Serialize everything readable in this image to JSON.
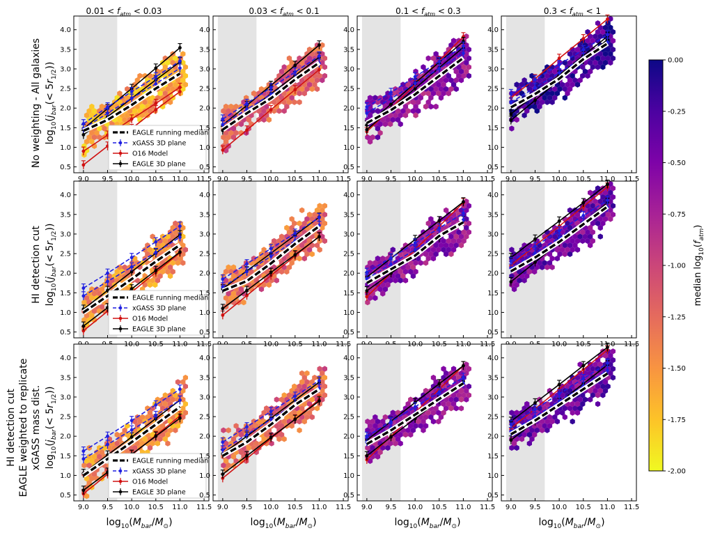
{
  "figure": {
    "columns": [
      {
        "pre": "0.01 < ",
        "var": "f",
        "sub": "atm",
        "post": " < 0.03"
      },
      {
        "pre": "0.03 < ",
        "var": "f",
        "sub": "atm",
        "post": " < 0.1"
      },
      {
        "pre": "0.1 < ",
        "var": "f",
        "sub": "atm",
        "post": " < 0.3"
      },
      {
        "pre": "0.3 < ",
        "var": "f",
        "sub": "atm",
        "post": " < 1"
      }
    ],
    "rows": [
      {
        "lines": [
          "No weighting - All galaxies"
        ],
        "ylabel": "log10(jbar(< 5r1/2))"
      },
      {
        "lines": [
          "HI detection cut"
        ],
        "ylabel": "log10(jbar(< 5r1/2))"
      },
      {
        "lines": [
          "HI detection cut",
          "EAGLE weighted to replicate",
          "xGASS mass dist."
        ],
        "ylabel": "log10(jbar(< 5r1/2))"
      }
    ],
    "xlabel": "log10(Mbar/M⊙)",
    "colorbar": {
      "label": "median log10(fatm)",
      "range": [
        -2.0,
        0.0
      ],
      "ticks": [
        "0.00",
        "-0.25",
        "-0.50",
        "-0.75",
        "-1.00",
        "-1.25",
        "-1.50",
        "-1.75",
        "-2.00"
      ],
      "colormap": "plasma_r"
    },
    "legend_entries": [
      "EAGLE running median",
      "xGASS 3D plane",
      "O16 Model",
      "EAGLE 3D plane"
    ],
    "shaded_region": [
      8.9,
      9.7
    ],
    "colors": {
      "eagle_median": "#000000",
      "xgass": "#1f1fe0",
      "o16": "#d01010",
      "eagle_plane": "#000000",
      "shade": "#e4e4e4"
    }
  },
  "chart_data": {
    "type": "scatter",
    "title": "",
    "xlabel": "log10(Mbar/M⊙)",
    "ylabel": "log10(jbar(< 5r1/2))",
    "xlim": [
      8.8,
      11.6
    ],
    "ylim": [
      0.35,
      4.35
    ],
    "xticks": [
      9.0,
      9.5,
      10.0,
      10.5,
      11.0,
      11.5
    ],
    "yticks": [
      0.5,
      1.0,
      1.5,
      2.0,
      2.5,
      3.0,
      3.5,
      4.0
    ],
    "x_points": [
      9.0,
      9.5,
      10.0,
      10.5,
      11.0
    ],
    "panels": [
      [
        {
          "color_center": -1.6,
          "median": [
            1.42,
            1.7,
            2.08,
            2.5,
            2.88
          ],
          "xgass": [
            [
              1.6,
              2.03,
              2.42,
              2.8,
              3.2
            ],
            [
              1.48,
              1.87,
              2.25,
              2.62,
              3.02
            ]
          ],
          "o16": [
            [
              0.9,
              1.31,
              1.72,
              2.12,
              2.53
            ],
            [
              0.55,
              1.03,
              1.48,
              1.96,
              2.42
            ]
          ],
          "eagle_plane": [
            [
              1.47,
              1.99,
              2.5,
              3.02,
              3.54
            ],
            [
              1.32,
              1.78,
              2.25,
              2.72,
              3.18
            ]
          ]
        },
        {
          "color_center": -1.15,
          "median": [
            1.45,
            1.87,
            2.25,
            2.73,
            3.16
          ],
          "xgass": [
            [
              1.72,
              2.12,
              2.52,
              2.92,
              3.33
            ],
            [
              1.58,
              1.97,
              2.35,
              2.75,
              3.14
            ]
          ],
          "o16": [
            [
              0.93,
              1.44,
              1.96,
              2.47,
              2.98
            ]
          ],
          "eagle_plane": [
            [
              1.57,
              2.07,
              2.58,
              3.09,
              3.61
            ],
            [
              1.43,
              1.9,
              2.37,
              2.83,
              3.3
            ]
          ]
        },
        {
          "color_center": -0.6,
          "median": [
            1.62,
            1.95,
            2.35,
            2.82,
            3.28
          ],
          "xgass": [
            [
              2.03,
              2.4,
              2.8,
              3.19,
              3.58
            ],
            [
              1.87,
              2.24,
              2.63,
              3.01,
              3.4
            ]
          ],
          "o16": [
            [
              1.4,
              1.99,
              2.6,
              3.21,
              3.82
            ]
          ],
          "eagle_plane": [
            [
              1.57,
              2.1,
              2.64,
              3.17,
              3.7
            ],
            [
              1.45,
              1.98,
              2.5,
              3.03,
              3.55
            ]
          ]
        },
        {
          "color_center": -0.25,
          "median": [
            2.02,
            2.36,
            2.75,
            3.25,
            3.65
          ],
          "xgass": [
            [
              2.37,
              2.73,
              3.11,
              3.49,
              3.87
            ],
            [
              2.15,
              2.52,
              2.9,
              3.29,
              3.68
            ]
          ],
          "o16": [
            [
              2.26,
              2.75,
              3.27,
              3.77,
              4.27
            ]
          ],
          "eagle_plane": [
            [
              1.69,
              2.2,
              2.72,
              3.23,
              3.75
            ],
            [
              1.85,
              2.35,
              2.84,
              3.34,
              3.83
            ]
          ]
        }
      ],
      [
        {
          "color_center": -1.45,
          "median": [
            1.0,
            1.42,
            1.85,
            2.3,
            2.72
          ],
          "xgass": [
            [
              1.62,
              2.0,
              2.4,
              2.8,
              3.2
            ],
            [
              1.42,
              1.79,
              2.16,
              2.53,
              2.92
            ]
          ],
          "o16": [
            [
              0.53,
              1.03,
              1.52,
              2.02,
              2.52
            ]
          ],
          "eagle_plane": [
            [
              1.08,
              1.56,
              2.04,
              2.51,
              2.98
            ],
            [
              0.65,
              1.12,
              1.6,
              2.07,
              2.54
            ]
          ]
        },
        {
          "color_center": -1.25,
          "median": [
            1.55,
            1.8,
            2.25,
            2.75,
            3.2
          ],
          "xgass": [
            [
              1.85,
              2.24,
              2.63,
              3.02,
              3.42
            ],
            [
              1.65,
              2.04,
              2.43,
              2.83,
              3.22
            ]
          ],
          "o16": [
            [
              0.93,
              1.43,
              1.94,
              2.44,
              2.94
            ]
          ],
          "eagle_plane": [
            [
              1.6,
              2.06,
              2.51,
              2.97,
              3.43
            ],
            [
              1.1,
              1.56,
              2.02,
              2.47,
              2.93
            ]
          ]
        },
        {
          "color_center": -0.6,
          "median": [
            1.75,
            2.1,
            2.45,
            2.95,
            3.3
          ],
          "xgass": [
            [
              2.02,
              2.39,
              2.77,
              3.15,
              3.53
            ],
            [
              1.86,
              2.23,
              2.6,
              2.98,
              3.36
            ]
          ],
          "o16": [
            [
              1.4,
              2.0,
              2.6,
              3.2,
              3.8
            ]
          ],
          "eagle_plane": [
            [
              1.9,
              2.38,
              2.86,
              3.34,
              3.82
            ],
            [
              1.55,
              2.0,
              2.45,
              2.9,
              3.35
            ]
          ]
        },
        {
          "color_center": -0.45,
          "median": [
            2.05,
            2.4,
            2.8,
            3.25,
            3.7
          ],
          "xgass": [
            [
              2.3,
              2.69,
              3.08,
              3.47,
              3.86
            ],
            [
              2.13,
              2.51,
              2.9,
              3.29,
              3.68
            ]
          ],
          "o16": [
            [
              2.2,
              2.7,
              3.2,
              3.7,
              4.2
            ]
          ],
          "eagle_plane": [
            [
              2.4,
              2.87,
              3.33,
              3.8,
              4.27
            ],
            [
              1.78,
              2.28,
              2.79,
              3.29,
              3.8
            ]
          ]
        }
      ],
      [
        {
          "color_center": -1.45,
          "median": [
            1.0,
            1.42,
            1.85,
            2.3,
            2.75
          ],
          "xgass": [
            [
              1.62,
              2.0,
              2.4,
              2.8,
              3.2
            ],
            [
              1.42,
              1.79,
              2.16,
              2.53,
              2.92
            ]
          ],
          "o16": [
            [
              0.53,
              1.03,
              1.52,
              2.02,
              2.52
            ]
          ],
          "eagle_plane": [
            [
              1.05,
              1.52,
              1.98,
              2.45,
              2.92
            ],
            [
              0.62,
              1.08,
              1.54,
              2.0,
              2.46
            ]
          ]
        },
        {
          "color_center": -1.25,
          "median": [
            1.5,
            1.85,
            2.3,
            2.8,
            3.2
          ],
          "xgass": [
            [
              1.85,
              2.24,
              2.63,
              3.02,
              3.42
            ],
            [
              1.65,
              2.04,
              2.43,
              2.83,
              3.22
            ]
          ],
          "o16": [
            [
              0.93,
              1.43,
              1.94,
              2.44,
              2.94
            ]
          ],
          "eagle_plane": [
            [
              1.55,
              2.0,
              2.46,
              2.92,
              3.38
            ],
            [
              1.03,
              1.5,
              1.97,
              2.43,
              2.9
            ]
          ]
        },
        {
          "color_center": -0.6,
          "median": [
            1.8,
            2.15,
            2.55,
            2.95,
            3.35
          ],
          "xgass": [
            [
              2.0,
              2.37,
              2.75,
              3.13,
              3.5
            ],
            [
              1.85,
              2.22,
              2.59,
              2.97,
              3.35
            ]
          ],
          "o16": [
            [
              1.4,
              2.0,
              2.6,
              3.2,
              3.8
            ]
          ],
          "eagle_plane": [
            [
              1.9,
              2.38,
              2.86,
              3.34,
              3.8
            ],
            [
              1.5,
              1.98,
              2.45,
              2.92,
              3.4
            ]
          ]
        },
        {
          "color_center": -0.45,
          "median": [
            2.05,
            2.4,
            2.8,
            3.2,
            3.6
          ],
          "xgass": [
            [
              2.3,
              2.69,
              3.08,
              3.47,
              3.86
            ],
            [
              2.12,
              2.5,
              2.89,
              3.28,
              3.68
            ]
          ],
          "o16": [
            [
              2.2,
              2.7,
              3.2,
              3.7,
              4.2
            ]
          ],
          "eagle_plane": [
            [
              2.38,
              2.85,
              3.32,
              3.8,
              4.27
            ],
            [
              1.9,
              2.38,
              2.86,
              3.34,
              3.82
            ]
          ]
        }
      ]
    ]
  }
}
